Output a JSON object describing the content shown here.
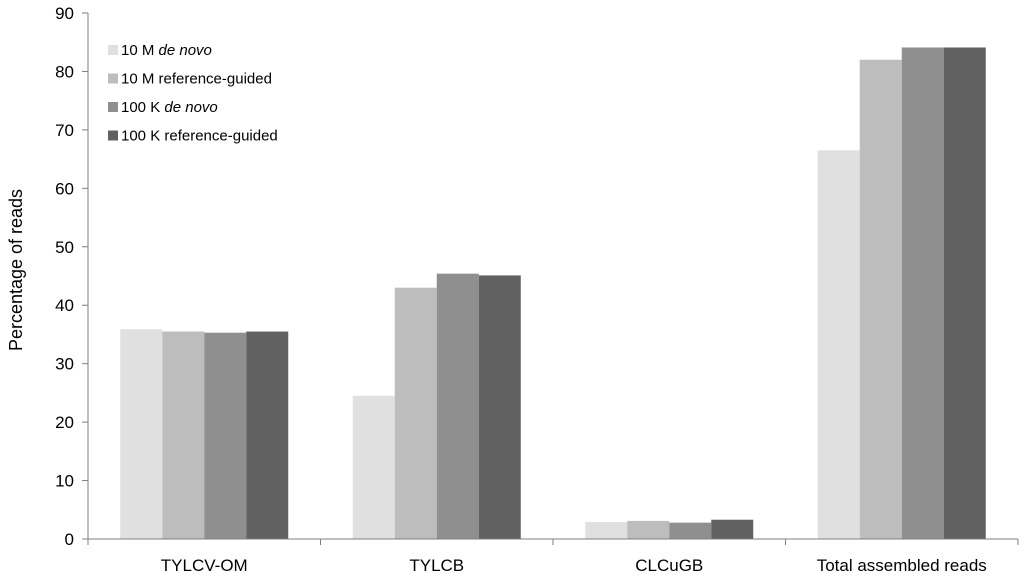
{
  "chart_data": {
    "type": "bar",
    "title": "",
    "xlabel": "",
    "ylabel": "Percentage of reads",
    "ylim": [
      0,
      90
    ],
    "yticks": [
      0,
      10,
      20,
      30,
      40,
      50,
      60,
      70,
      80,
      90
    ],
    "grid": false,
    "legend_position": "top-left",
    "categories": [
      "TYLCV-OM",
      "TYLCB",
      "CLCuGB",
      "Total assembled reads"
    ],
    "series": [
      {
        "name": "10 M de novo",
        "name_plain": "10 M ",
        "name_italic": "de novo",
        "color": "#e0e0e0",
        "values": [
          35.9,
          24.5,
          2.9,
          66.5
        ]
      },
      {
        "name": "10 M reference-guided",
        "name_plain": "10 M reference-guided",
        "name_italic": "",
        "color": "#bdbdbd",
        "values": [
          35.5,
          43.0,
          3.1,
          82.0
        ]
      },
      {
        "name": "100 K de novo",
        "name_plain": "100 K ",
        "name_italic": "de novo",
        "color": "#8f8f8f",
        "values": [
          35.3,
          45.4,
          2.8,
          84.1
        ]
      },
      {
        "name": "100 K reference-guided",
        "name_plain": "100 K reference-guided",
        "name_italic": "",
        "color": "#616161",
        "values": [
          35.5,
          45.1,
          3.3,
          84.1
        ]
      }
    ]
  }
}
